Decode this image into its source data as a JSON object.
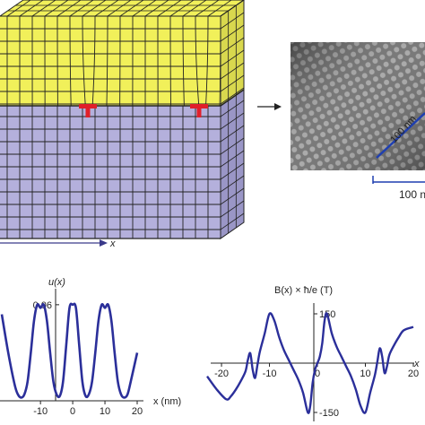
{
  "colors": {
    "upper_crystal": "#f1f05a",
    "lower_crystal": "#b4b0dc",
    "dislocation": "#e0202a",
    "curve": "#2b2f9a",
    "scale_bar": "#1f3fb0"
  },
  "schematic": {
    "axis_label": "x"
  },
  "micrograph": {
    "diag_scale_label": "100 nm",
    "horiz_scale_label": "100 nm"
  },
  "chart_data": [
    {
      "type": "line",
      "title": "",
      "ylabel": "u(x)",
      "xlabel": "x (nm)",
      "y_tick_label": "0.06",
      "xlim": [
        -20,
        20
      ],
      "ylim": [
        0,
        0.07
      ],
      "x_ticks": [
        -10,
        0,
        10,
        20
      ],
      "y_ticks": [
        0.06
      ],
      "series": [
        {
          "x": [
            -22,
            -20,
            -18,
            -17,
            -16,
            -15,
            -14,
            -13,
            -12,
            -11,
            -10,
            -9,
            -8,
            -7,
            -6,
            -5,
            -4,
            -3,
            -2,
            -1,
            0,
            1,
            2,
            3,
            4,
            5,
            6,
            7,
            8,
            9,
            10,
            11,
            12,
            13,
            14,
            15,
            16,
            17,
            18,
            20
          ],
          "y": [
            0.054,
            0.03,
            0.01,
            0.004,
            0.002,
            0.004,
            0.012,
            0.03,
            0.05,
            0.06,
            0.058,
            0.06,
            0.05,
            0.03,
            0.012,
            0.004,
            0.003,
            0.012,
            0.035,
            0.058,
            0.06,
            0.058,
            0.035,
            0.012,
            0.003,
            0.004,
            0.012,
            0.03,
            0.05,
            0.06,
            0.058,
            0.06,
            0.05,
            0.03,
            0.012,
            0.004,
            0.002,
            0.004,
            0.012,
            0.03
          ]
        }
      ]
    },
    {
      "type": "line",
      "title": "",
      "ylabel": "B(x) × ħ/e (T)",
      "xlabel": "x",
      "xlim": [
        -20,
        20
      ],
      "ylim": [
        -150,
        150
      ],
      "x_ticks": [
        -20,
        -10,
        0,
        10,
        20
      ],
      "y_ticks": [
        -150,
        150
      ],
      "series": [
        {
          "x": [
            -23,
            -21,
            -19,
            -18,
            -17,
            -16,
            -15,
            -14.5,
            -14,
            -13.5,
            -13,
            -12.5,
            -12,
            -11,
            -10,
            -9,
            -8,
            -7,
            -6,
            -5,
            -4,
            -3,
            -2,
            -1.5,
            -1,
            -0.5,
            0,
            0.5,
            1,
            1.5,
            2,
            3,
            4,
            5,
            6,
            7,
            8,
            9,
            10,
            11,
            12,
            12.5,
            13,
            13.5,
            14,
            14.5,
            15,
            16,
            17,
            18,
            20
          ],
          "y": [
            -40,
            -80,
            -110,
            -100,
            -80,
            -55,
            -25,
            10,
            30,
            -20,
            -45,
            -5,
            35,
            90,
            150,
            130,
            80,
            40,
            10,
            -20,
            -50,
            -90,
            -150,
            -130,
            -60,
            -20,
            0,
            20,
            60,
            130,
            150,
            90,
            50,
            20,
            -10,
            -40,
            -80,
            -130,
            -150,
            -90,
            -35,
            5,
            45,
            20,
            -30,
            -10,
            25,
            55,
            80,
            100,
            110
          ]
        }
      ]
    }
  ]
}
